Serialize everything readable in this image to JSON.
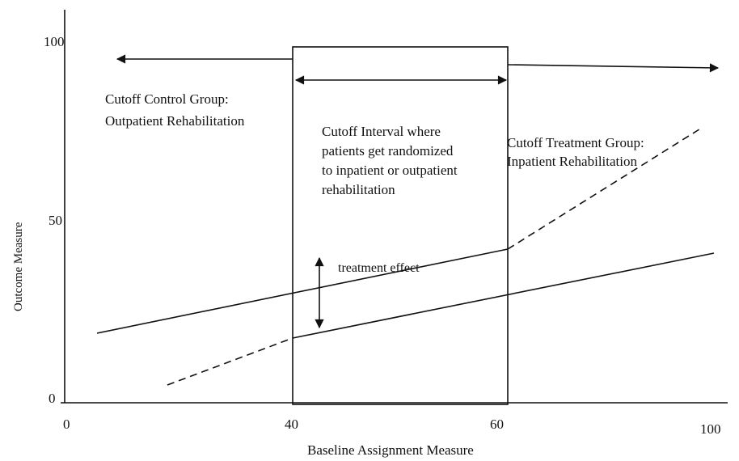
{
  "axes": {
    "y_label": "Outcome Measure",
    "x_label": "Baseline Assignment Measure",
    "y_ticks": [
      "100",
      "50",
      "0"
    ],
    "x_ticks": [
      "0",
      "40",
      "60",
      "100"
    ]
  },
  "labels": {
    "control": [
      "Cutoff Control Group:",
      "Outpatient Rehabilitation"
    ],
    "interval": [
      "Cutoff Interval where",
      "patients get  randomized",
      "to inpatient or outpatient",
      "rehabilitation"
    ],
    "treatment": [
      "Cutoff Treatment Group:",
      "Inpatient Rehabilitation"
    ],
    "effect": "treatment effect"
  }
}
